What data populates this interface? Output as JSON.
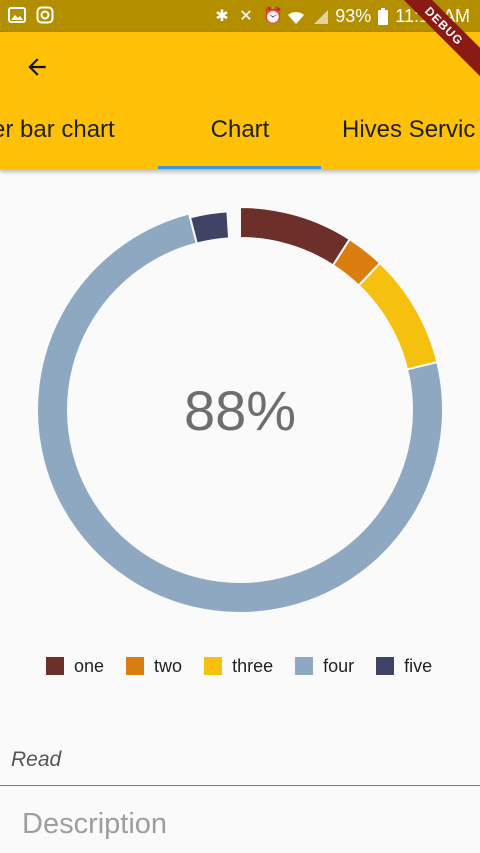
{
  "status_bar": {
    "battery": "93%",
    "time": "11:12 AM"
  },
  "appbar": {
    "back_icon": "arrow-left-icon",
    "debug_banner": "DEBUG",
    "tabs": [
      {
        "label": "er bar chart",
        "selected": false
      },
      {
        "label": "Chart",
        "selected": true
      },
      {
        "label": "Hives Servic",
        "selected": false
      }
    ]
  },
  "chart_data": {
    "type": "pie",
    "center_label": "88%",
    "series": [
      {
        "name": "one",
        "value": 9,
        "color": "#6d2f2a"
      },
      {
        "name": "two",
        "value": 3,
        "color": "#d97e0f"
      },
      {
        "name": "three",
        "value": 9,
        "color": "#f6c00f"
      },
      {
        "name": "four",
        "value": 74,
        "color": "#8da8c0"
      },
      {
        "name": "five",
        "value": 3,
        "color": "#3f4466"
      }
    ]
  },
  "form": {
    "read_label": "Read",
    "description_placeholder": "Description"
  }
}
